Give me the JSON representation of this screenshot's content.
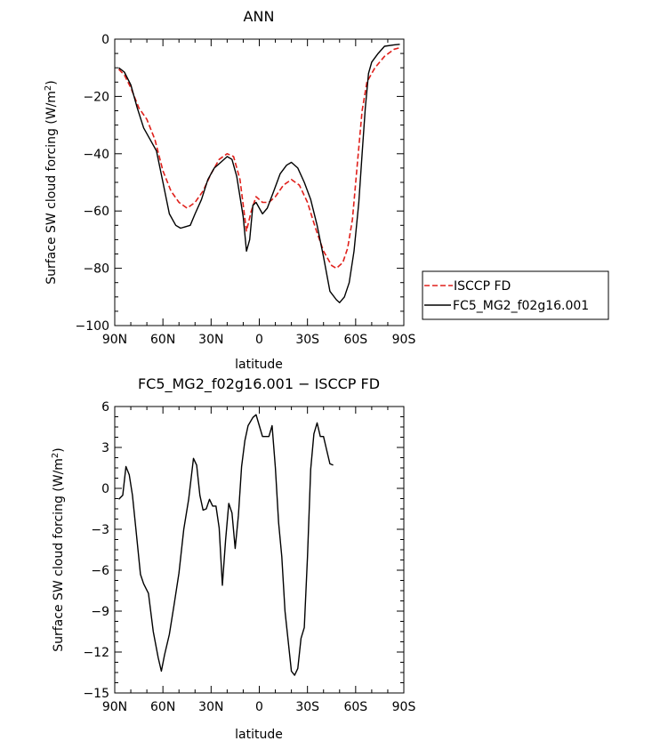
{
  "chart_data": [
    {
      "type": "line",
      "title": "ANN",
      "xlabel": "latitude",
      "ylabel": "Surface SW cloud forcing (W/m²)",
      "xlim": [
        -90,
        90
      ],
      "ylim": [
        -100,
        0
      ],
      "x_ticks": [
        {
          "value": -90,
          "label": "90N"
        },
        {
          "value": -60,
          "label": "60N"
        },
        {
          "value": -30,
          "label": "30N"
        },
        {
          "value": 0,
          "label": "0"
        },
        {
          "value": 30,
          "label": "30S"
        },
        {
          "value": 60,
          "label": "60S"
        },
        {
          "value": 90,
          "label": "90S"
        }
      ],
      "y_ticks": [
        0,
        -20,
        -40,
        -60,
        -80,
        -100
      ],
      "legend": "right",
      "series": [
        {
          "name": "ISCCP FD",
          "color": "#e0201b",
          "dash": "dashed",
          "points": [
            [
              -87.5,
              -10.5
            ],
            [
              -84,
              -12.5
            ],
            [
              -80,
              -17
            ],
            [
              -75,
              -24
            ],
            [
              -70,
              -28
            ],
            [
              -65,
              -35
            ],
            [
              -60,
              -46
            ],
            [
              -55,
              -53
            ],
            [
              -50,
              -57
            ],
            [
              -45,
              -59
            ],
            [
              -40,
              -57
            ],
            [
              -35,
              -53
            ],
            [
              -30,
              -47
            ],
            [
              -25,
              -42
            ],
            [
              -20,
              -40
            ],
            [
              -16,
              -41
            ],
            [
              -12,
              -49
            ],
            [
              -8,
              -67
            ],
            [
              -5,
              -60
            ],
            [
              -2,
              -55
            ],
            [
              2,
              -57
            ],
            [
              6,
              -57
            ],
            [
              10,
              -55
            ],
            [
              15,
              -51
            ],
            [
              20,
              -49
            ],
            [
              25,
              -51
            ],
            [
              30,
              -57
            ],
            [
              35,
              -66
            ],
            [
              40,
              -74
            ],
            [
              45,
              -79
            ],
            [
              48,
              -80
            ],
            [
              52,
              -78
            ],
            [
              55,
              -73
            ],
            [
              58,
              -63
            ],
            [
              61,
              -44
            ],
            [
              64,
              -25
            ],
            [
              67,
              -15
            ],
            [
              72,
              -10
            ],
            [
              78,
              -6
            ],
            [
              84,
              -3.5
            ],
            [
              87.5,
              -3
            ]
          ]
        },
        {
          "name": "FC5_MG2_f02g16.001",
          "color": "#000000",
          "dash": "solid",
          "points": [
            [
              -87.5,
              -10
            ],
            [
              -84,
              -11.5
            ],
            [
              -80,
              -16
            ],
            [
              -76,
              -24
            ],
            [
              -72,
              -31
            ],
            [
              -68,
              -35
            ],
            [
              -64,
              -39
            ],
            [
              -60,
              -50
            ],
            [
              -56,
              -61
            ],
            [
              -52,
              -65
            ],
            [
              -49,
              -66
            ],
            [
              -46,
              -65.5
            ],
            [
              -43,
              -65
            ],
            [
              -40,
              -61
            ],
            [
              -36,
              -56
            ],
            [
              -32,
              -49
            ],
            [
              -28,
              -45
            ],
            [
              -24,
              -43
            ],
            [
              -20,
              -41
            ],
            [
              -17,
              -42
            ],
            [
              -14,
              -48
            ],
            [
              -10,
              -62
            ],
            [
              -8,
              -74
            ],
            [
              -6,
              -70
            ],
            [
              -4,
              -58
            ],
            [
              -2,
              -57
            ],
            [
              2,
              -61
            ],
            [
              5,
              -59
            ],
            [
              9,
              -53
            ],
            [
              13,
              -47
            ],
            [
              17,
              -44
            ],
            [
              20,
              -43
            ],
            [
              24,
              -45
            ],
            [
              28,
              -50
            ],
            [
              32,
              -56
            ],
            [
              36,
              -65
            ],
            [
              40,
              -76
            ],
            [
              44,
              -88
            ],
            [
              48,
              -91
            ],
            [
              50,
              -92
            ],
            [
              53,
              -90
            ],
            [
              56,
              -85
            ],
            [
              59,
              -74
            ],
            [
              62,
              -57
            ],
            [
              64,
              -40
            ],
            [
              66,
              -24
            ],
            [
              68,
              -12
            ],
            [
              70,
              -8
            ],
            [
              74,
              -5
            ],
            [
              78,
              -2.5
            ],
            [
              84,
              -2
            ],
            [
              87.5,
              -1.8
            ]
          ]
        }
      ]
    },
    {
      "type": "line",
      "title": "FC5_MG2_f02g16.001 − ISCCP FD",
      "xlabel": "latitude",
      "ylabel": "Surface SW cloud forcing (W/m²)",
      "xlim": [
        -90,
        90
      ],
      "ylim": [
        -15,
        6
      ],
      "x_ticks": [
        {
          "value": -90,
          "label": "90N"
        },
        {
          "value": -60,
          "label": "60N"
        },
        {
          "value": -30,
          "label": "30N"
        },
        {
          "value": 0,
          "label": "0"
        },
        {
          "value": 30,
          "label": "30S"
        },
        {
          "value": 60,
          "label": "60S"
        },
        {
          "value": 90,
          "label": "90S"
        }
      ],
      "y_ticks": [
        6,
        3,
        0,
        -3,
        -6,
        -9,
        -12,
        -15
      ],
      "series": [
        {
          "color": "#000000",
          "dash": "solid",
          "points": [
            [
              -87.5,
              -0.8
            ],
            [
              -85,
              -0.5
            ],
            [
              -83,
              1.6
            ],
            [
              -81,
              1.0
            ],
            [
              -79,
              -0.5
            ],
            [
              -77,
              -2.8
            ],
            [
              -74,
              -6.3
            ],
            [
              -72,
              -7.0
            ],
            [
              -69,
              -7.7
            ],
            [
              -66,
              -10.5
            ],
            [
              -63,
              -12.4
            ],
            [
              -61,
              -13.4
            ],
            [
              -59,
              -12.2
            ],
            [
              -56,
              -10.7
            ],
            [
              -53,
              -8.5
            ],
            [
              -50,
              -6.2
            ],
            [
              -47,
              -3.0
            ],
            [
              -44,
              -0.8
            ],
            [
              -41,
              2.2
            ],
            [
              -39,
              1.7
            ],
            [
              -37,
              -0.5
            ],
            [
              -35,
              -1.6
            ],
            [
              -33,
              -1.5
            ],
            [
              -31,
              -0.8
            ],
            [
              -29,
              -1.3
            ],
            [
              -27,
              -1.3
            ],
            [
              -25,
              -2.9
            ],
            [
              -23,
              -7.1
            ],
            [
              -21,
              -3.8
            ],
            [
              -19,
              -1.1
            ],
            [
              -17,
              -1.8
            ],
            [
              -15,
              -4.4
            ],
            [
              -13,
              -2.0
            ],
            [
              -11,
              1.6
            ],
            [
              -9,
              3.5
            ],
            [
              -7,
              4.6
            ],
            [
              -4,
              5.2
            ],
            [
              -2,
              5.4
            ],
            [
              0,
              4.6
            ],
            [
              2,
              3.8
            ],
            [
              4,
              3.8
            ],
            [
              6,
              3.8
            ],
            [
              8,
              4.6
            ],
            [
              10,
              1.5
            ],
            [
              12,
              -2.5
            ],
            [
              14,
              -5.0
            ],
            [
              16,
              -9.0
            ],
            [
              18,
              -11.2
            ],
            [
              20,
              -13.4
            ],
            [
              22,
              -13.7
            ],
            [
              24,
              -13.2
            ],
            [
              26,
              -11.0
            ],
            [
              28,
              -10.2
            ],
            [
              30,
              -5.0
            ],
            [
              32,
              1.4
            ],
            [
              34,
              4.0
            ],
            [
              36,
              4.8
            ],
            [
              38,
              3.8
            ],
            [
              40,
              3.8
            ],
            [
              42,
              2.8
            ],
            [
              44,
              1.8
            ],
            [
              46,
              1.7
            ]
          ]
        }
      ]
    }
  ]
}
